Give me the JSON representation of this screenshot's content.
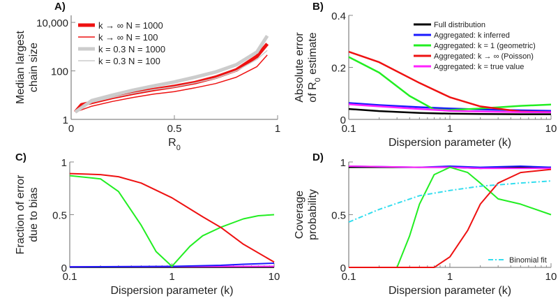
{
  "chart_data": [
    {
      "id": "A",
      "panel_label": "A)",
      "type": "line",
      "xlabel": "R",
      "xlabel_sub": "0",
      "ylabel": [
        "Median largest",
        "chain size"
      ],
      "ylabel_sub": "",
      "xscale": "linear",
      "yscale": "log",
      "xlim": [
        0,
        1
      ],
      "ylim": [
        1,
        19500
      ],
      "xticks": [
        {
          "v": 0,
          "t": "0"
        },
        {
          "v": 0.5,
          "t": "0.5"
        },
        {
          "v": 1,
          "t": "1"
        }
      ],
      "yticks": [
        {
          "v": 1,
          "t": "1"
        },
        {
          "v": 100,
          "t": "100"
        },
        {
          "v": 10000,
          "t": "10,000"
        }
      ],
      "legend_position": "top-left",
      "series": [
        {
          "name": "k → ∞  N = 1000",
          "color": "#ee1111",
          "width": 5,
          "x": [
            0.02,
            0.05,
            0.1,
            0.2,
            0.3,
            0.4,
            0.5,
            0.6,
            0.7,
            0.8,
            0.9,
            0.95
          ],
          "y": [
            2,
            4,
            5,
            8,
            12,
            17,
            23,
            33,
            55,
            110,
            400,
            1300
          ]
        },
        {
          "name": "k → ∞  N = 100",
          "color": "#ee1111",
          "width": 1.5,
          "x": [
            0.02,
            0.1,
            0.2,
            0.3,
            0.4,
            0.5,
            0.6,
            0.7,
            0.8,
            0.9,
            0.95
          ],
          "y": [
            2,
            3.5,
            5.5,
            8,
            11,
            14,
            20,
            30,
            55,
            150,
            450
          ]
        },
        {
          "name": "k = 0.3  N = 1000",
          "color": "#cccccc",
          "width": 5,
          "x": [
            0.02,
            0.1,
            0.2,
            0.3,
            0.4,
            0.5,
            0.6,
            0.7,
            0.8,
            0.9,
            0.95
          ],
          "y": [
            2,
            6,
            10,
            16,
            24,
            35,
            55,
            90,
            180,
            600,
            2800
          ]
        },
        {
          "name": "k = 0.3  N = 100",
          "color": "#cccccc",
          "width": 1.5,
          "x": [
            0.02,
            0.1,
            0.2,
            0.3,
            0.4,
            0.5,
            0.6,
            0.7,
            0.8,
            0.9,
            0.95
          ],
          "y": [
            2,
            5,
            8,
            12,
            17,
            22,
            32,
            50,
            100,
            300,
            700
          ]
        }
      ]
    },
    {
      "id": "B",
      "panel_label": "B)",
      "type": "line",
      "xlabel": "Dispersion parameter (k)",
      "xlabel_sub": "",
      "ylabel": [
        "Absolute error",
        "of R"
      ],
      "ylabel_sub": "0",
      "ylabel_tail": " estimate",
      "xscale": "log",
      "yscale": "linear",
      "xlim": [
        0.1,
        10
      ],
      "ylim": [
        0,
        0.4
      ],
      "xticks": [
        {
          "v": 0.1,
          "t": "0.1"
        },
        {
          "v": 1,
          "t": "1"
        },
        {
          "v": 10,
          "t": "10"
        }
      ],
      "yticks": [
        {
          "v": 0,
          "t": "0"
        },
        {
          "v": 0.2,
          "t": "0.2"
        },
        {
          "v": 0.4,
          "t": "0.4"
        }
      ],
      "legend_position": "top-right",
      "series": [
        {
          "name": "Full distribution",
          "color": "#000000",
          "width": 2.5,
          "x": [
            0.1,
            0.2,
            0.5,
            1,
            2,
            5,
            10
          ],
          "y": [
            0.04,
            0.032,
            0.025,
            0.022,
            0.021,
            0.02,
            0.02
          ]
        },
        {
          "name": "Aggregated: k inferred",
          "color": "#1a1aff",
          "width": 2.5,
          "x": [
            0.1,
            0.2,
            0.5,
            1,
            2,
            5,
            10
          ],
          "y": [
            0.063,
            0.055,
            0.047,
            0.042,
            0.038,
            0.035,
            0.033
          ]
        },
        {
          "name": "Aggregated: k = 1 (geometric)",
          "color": "#22ee22",
          "width": 2.5,
          "x": [
            0.1,
            0.2,
            0.4,
            0.7,
            1,
            2,
            5,
            10
          ],
          "y": [
            0.24,
            0.18,
            0.09,
            0.038,
            0.036,
            0.042,
            0.052,
            0.057
          ]
        },
        {
          "name": "Aggregated: k → ∞ (Poisson)",
          "color": "#ee1111",
          "width": 2.5,
          "x": [
            0.1,
            0.2,
            0.5,
            1,
            2,
            5,
            10
          ],
          "y": [
            0.26,
            0.22,
            0.14,
            0.085,
            0.05,
            0.03,
            0.028
          ]
        },
        {
          "name": "Aggregated: k = true value",
          "color": "#ff22ff",
          "width": 2.5,
          "x": [
            0.1,
            0.2,
            0.5,
            1,
            2,
            5,
            10
          ],
          "y": [
            0.058,
            0.05,
            0.04,
            0.033,
            0.03,
            0.028,
            0.027
          ]
        }
      ]
    },
    {
      "id": "C",
      "panel_label": "C)",
      "type": "line",
      "xlabel": "Dispersion parameter (k)",
      "xlabel_sub": "",
      "ylabel": [
        "Fraction of error",
        "due to bias"
      ],
      "ylabel_sub": "",
      "xscale": "log",
      "yscale": "linear",
      "xlim": [
        0.1,
        10
      ],
      "ylim": [
        0,
        1
      ],
      "xticks": [
        {
          "v": 0.1,
          "t": "0.1"
        },
        {
          "v": 1,
          "t": "1"
        },
        {
          "v": 10,
          "t": "10"
        }
      ],
      "yticks": [
        {
          "v": 0,
          "t": "0"
        },
        {
          "v": 0.5,
          "t": "0.5"
        },
        {
          "v": 1,
          "t": "1"
        }
      ],
      "series": [
        {
          "name": "Full distribution",
          "color": "#000000",
          "width": 2,
          "x": [
            0.1,
            10
          ],
          "y": [
            0.002,
            0.002
          ]
        },
        {
          "name": "Aggregated: k = true value",
          "color": "#ff22ff",
          "width": 2,
          "x": [
            0.1,
            1,
            10
          ],
          "y": [
            0.006,
            0.008,
            0.01
          ]
        },
        {
          "name": "Aggregated: k inferred",
          "color": "#1a1aff",
          "width": 2,
          "x": [
            0.1,
            1,
            3,
            5,
            10
          ],
          "y": [
            0.005,
            0.01,
            0.02,
            0.03,
            0.04
          ]
        },
        {
          "name": "Aggregated: k = 1 (geometric)",
          "color": "#22ee22",
          "width": 2,
          "x": [
            0.1,
            0.2,
            0.3,
            0.5,
            0.7,
            1,
            1.5,
            2,
            3,
            5,
            7,
            10
          ],
          "y": [
            0.87,
            0.84,
            0.72,
            0.4,
            0.15,
            0.01,
            0.2,
            0.3,
            0.38,
            0.46,
            0.49,
            0.5
          ]
        },
        {
          "name": "Aggregated: k → ∞ (Poisson)",
          "color": "#ee1111",
          "width": 2,
          "x": [
            0.1,
            0.2,
            0.3,
            0.5,
            1,
            2,
            3,
            5,
            10
          ],
          "y": [
            0.89,
            0.88,
            0.86,
            0.8,
            0.66,
            0.48,
            0.38,
            0.22,
            0.05
          ]
        }
      ]
    },
    {
      "id": "D",
      "panel_label": "D)",
      "type": "line",
      "xlabel": "Dispersion parameter (k)",
      "xlabel_sub": "",
      "ylabel": [
        "Coverage",
        "probability"
      ],
      "ylabel_sub": "",
      "xscale": "log",
      "yscale": "linear",
      "xlim": [
        0.1,
        10
      ],
      "ylim": [
        0,
        1
      ],
      "xticks": [
        {
          "v": 0.1,
          "t": "0.1"
        },
        {
          "v": 1,
          "t": "1"
        },
        {
          "v": 10,
          "t": "10"
        }
      ],
      "yticks": [
        {
          "v": 0,
          "t": "0"
        },
        {
          "v": 0.5,
          "t": "0.5"
        },
        {
          "v": 1,
          "t": "1"
        }
      ],
      "legend_position": "bottom-right",
      "legend_entries": [
        "Binomial fit"
      ],
      "series": [
        {
          "name": "Full distribution",
          "color": "#000000",
          "width": 2,
          "x": [
            0.1,
            0.5,
            1,
            2,
            5,
            10
          ],
          "y": [
            0.95,
            0.95,
            0.95,
            0.94,
            0.95,
            0.95
          ]
        },
        {
          "name": "Aggregated: k inferred",
          "color": "#1a1aff",
          "width": 2,
          "x": [
            0.1,
            0.5,
            1,
            2,
            5,
            10
          ],
          "y": [
            0.96,
            0.95,
            0.96,
            0.95,
            0.96,
            0.95
          ]
        },
        {
          "name": "Aggregated: k = true value",
          "color": "#ff22ff",
          "width": 2,
          "x": [
            0.1,
            0.5,
            1,
            2,
            5,
            10
          ],
          "y": [
            0.96,
            0.95,
            0.95,
            0.94,
            0.94,
            0.94
          ]
        },
        {
          "name": "Aggregated: k = 1 (geometric)",
          "color": "#22ee22",
          "width": 2,
          "x": [
            0.1,
            0.3,
            0.4,
            0.5,
            0.7,
            1,
            1.5,
            2,
            3,
            5,
            10
          ],
          "y": [
            0,
            0,
            0.3,
            0.6,
            0.88,
            0.95,
            0.9,
            0.8,
            0.65,
            0.6,
            0.5
          ]
        },
        {
          "name": "Aggregated: k → ∞ (Poisson)",
          "color": "#ee1111",
          "width": 2,
          "x": [
            0.1,
            0.7,
            1,
            1.5,
            2,
            3,
            5,
            10
          ],
          "y": [
            0,
            0,
            0.1,
            0.35,
            0.6,
            0.8,
            0.9,
            0.93
          ]
        },
        {
          "name": "Binomial fit",
          "color": "#33ddee",
          "width": 2,
          "dash": true,
          "x": [
            0.1,
            0.2,
            0.5,
            1,
            2,
            5,
            10
          ],
          "y": [
            0.43,
            0.55,
            0.68,
            0.73,
            0.77,
            0.8,
            0.82
          ]
        }
      ]
    }
  ]
}
